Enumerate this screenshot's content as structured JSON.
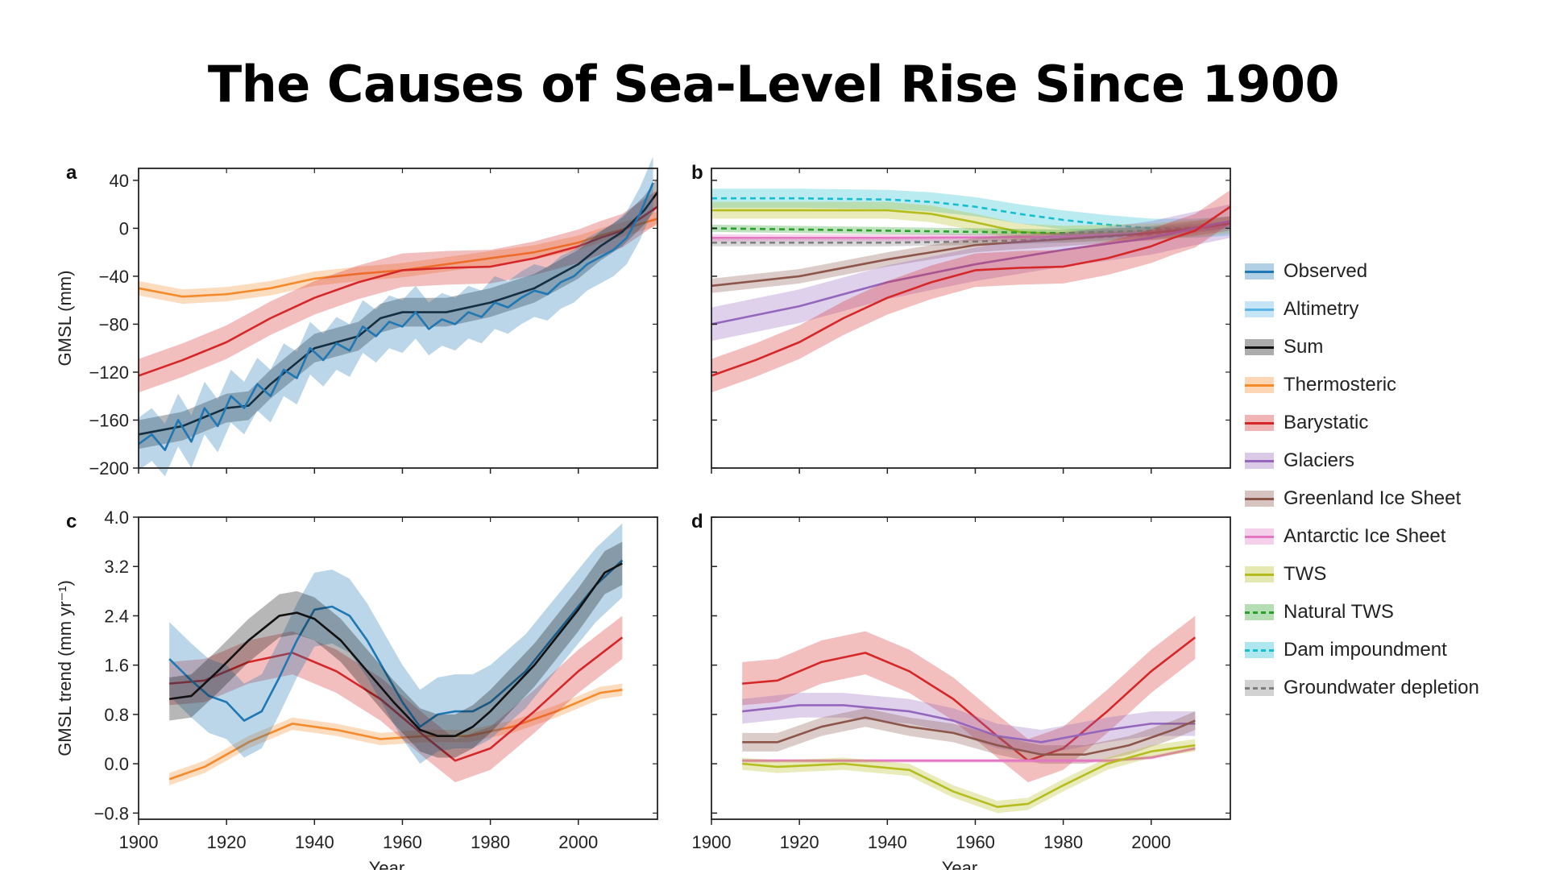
{
  "title": "The Causes of Sea-Level Rise Since 1900",
  "colors": {
    "observed": "#1f77b4",
    "altimetry": "#5ab4e6",
    "sum": "#111111",
    "thermosteric": "#f58a2a",
    "barystatic": "#d62728",
    "glaciers": "#9467bd",
    "greenland": "#8c564b",
    "antarctic": "#e377c2",
    "tws": "#b5bd1e",
    "natural_tws": "#2ca02c",
    "dam": "#17becf",
    "groundwater": "#7f7f7f"
  },
  "legend": [
    {
      "key": "observed",
      "label": "Observed",
      "style": "solid"
    },
    {
      "key": "altimetry",
      "label": "Altimetry",
      "style": "solid"
    },
    {
      "key": "sum",
      "label": "Sum",
      "style": "solid"
    },
    {
      "key": "thermosteric",
      "label": "Thermosteric",
      "style": "solid"
    },
    {
      "key": "barystatic",
      "label": "Barystatic",
      "style": "solid"
    },
    {
      "key": "glaciers",
      "label": "Glaciers",
      "style": "solid"
    },
    {
      "key": "greenland",
      "label": "Greenland Ice Sheet",
      "style": "solid"
    },
    {
      "key": "antarctic",
      "label": "Antarctic Ice Sheet",
      "style": "solid"
    },
    {
      "key": "tws",
      "label": "TWS",
      "style": "solid"
    },
    {
      "key": "natural_tws",
      "label": "Natural TWS",
      "style": "dashed"
    },
    {
      "key": "dam",
      "label": "Dam impoundment",
      "style": "dashed"
    },
    {
      "key": "groundwater",
      "label": "Groundwater depletion",
      "style": "dashed"
    }
  ],
  "chart_data": [
    {
      "panel": "a",
      "type": "line",
      "xlim": [
        1900,
        2018
      ],
      "ylim": [
        -200,
        50
      ],
      "xticks": [],
      "yticks": [
        "40",
        "0",
        "−40",
        "−80",
        "−120",
        "−160",
        "−200"
      ],
      "ytick_values": [
        40,
        0,
        -40,
        -80,
        -120,
        -160,
        -200
      ],
      "ylabel": "GMSL (mm)",
      "xlabel": "",
      "series": [
        {
          "key": "thermosteric",
          "style": "solid",
          "band": 6,
          "x": [
            1900,
            1910,
            1920,
            1930,
            1940,
            1950,
            1960,
            1970,
            1980,
            1990,
            2000,
            2005,
            2010,
            2018
          ],
          "y": [
            -50,
            -57,
            -55,
            -50,
            -42,
            -38,
            -35,
            -30,
            -25,
            -20,
            -12,
            -6,
            -1,
            8
          ]
        },
        {
          "key": "barystatic",
          "style": "solid",
          "band": 14,
          "x": [
            1900,
            1910,
            1920,
            1930,
            1940,
            1950,
            1960,
            1970,
            1980,
            1990,
            2000,
            2005,
            2010,
            2018
          ],
          "y": [
            -123,
            -110,
            -95,
            -75,
            -58,
            -45,
            -35,
            -33,
            -32,
            -25,
            -15,
            -8,
            -2,
            18
          ]
        },
        {
          "key": "sum",
          "style": "solid",
          "band": 12,
          "x": [
            1900,
            1910,
            1920,
            1925,
            1930,
            1940,
            1950,
            1955,
            1960,
            1970,
            1980,
            1990,
            2000,
            2005,
            2010,
            2015,
            2018
          ],
          "y": [
            -172,
            -165,
            -150,
            -148,
            -130,
            -100,
            -90,
            -75,
            -70,
            -70,
            -62,
            -50,
            -30,
            -15,
            -3,
            15,
            30
          ]
        },
        {
          "key": "observed",
          "style": "solid",
          "band": 22,
          "x": [
            1900,
            1903,
            1906,
            1909,
            1912,
            1915,
            1918,
            1921,
            1924,
            1927,
            1930,
            1933,
            1936,
            1939,
            1942,
            1945,
            1948,
            1951,
            1954,
            1957,
            1960,
            1963,
            1966,
            1969,
            1972,
            1975,
            1978,
            1981,
            1984,
            1987,
            1990,
            1993,
            1996,
            1999,
            2002,
            2005,
            2008,
            2011,
            2014,
            2017
          ],
          "y": [
            -180,
            -172,
            -185,
            -160,
            -178,
            -150,
            -165,
            -140,
            -150,
            -130,
            -140,
            -118,
            -125,
            -100,
            -110,
            -96,
            -102,
            -82,
            -90,
            -78,
            -82,
            -70,
            -84,
            -76,
            -80,
            -70,
            -74,
            -62,
            -66,
            -58,
            -52,
            -55,
            -45,
            -40,
            -30,
            -24,
            -18,
            -8,
            12,
            38
          ]
        }
      ]
    },
    {
      "panel": "b",
      "type": "line",
      "xlim": [
        1900,
        2018
      ],
      "ylim": [
        -200,
        50
      ],
      "xticks": [],
      "yticks": [],
      "ylabel": "",
      "xlabel": "",
      "series": [
        {
          "key": "dam",
          "style": "dashed",
          "band": 8,
          "x": [
            1900,
            1920,
            1940,
            1950,
            1960,
            1970,
            1980,
            1990,
            2000,
            2010,
            2018
          ],
          "y": [
            25,
            25,
            24,
            22,
            18,
            12,
            7,
            3,
            0,
            0,
            2
          ]
        },
        {
          "key": "tws",
          "style": "solid",
          "band": 7,
          "x": [
            1900,
            1920,
            1940,
            1950,
            1960,
            1970,
            1980,
            1990,
            2000,
            2010,
            2018
          ],
          "y": [
            15,
            15,
            15,
            12,
            5,
            -3,
            -5,
            -4,
            -3,
            0,
            3
          ]
        },
        {
          "key": "natural_tws",
          "style": "dashed",
          "band": 3,
          "x": [
            1900,
            1920,
            1940,
            1960,
            1980,
            2000,
            2018
          ],
          "y": [
            0,
            -1,
            -2,
            -3,
            -4,
            -2,
            3
          ]
        },
        {
          "key": "groundwater",
          "style": "dashed",
          "band": 3,
          "x": [
            1900,
            1940,
            1960,
            1980,
            2000,
            2010,
            2018
          ],
          "y": [
            -12,
            -12,
            -11,
            -9,
            -5,
            -1,
            3
          ]
        },
        {
          "key": "antarctic",
          "style": "solid",
          "band": 3,
          "x": [
            1900,
            1940,
            1980,
            2000,
            2018
          ],
          "y": [
            -8,
            -8,
            -7,
            -4,
            3
          ]
        },
        {
          "key": "greenland",
          "style": "solid",
          "band": 6,
          "x": [
            1900,
            1920,
            1940,
            1960,
            1980,
            2000,
            2010,
            2018
          ],
          "y": [
            -48,
            -40,
            -26,
            -14,
            -9,
            -4,
            0,
            4
          ]
        },
        {
          "key": "glaciers",
          "style": "solid",
          "band": 14,
          "x": [
            1900,
            1920,
            1940,
            1960,
            1980,
            2000,
            2010,
            2018
          ],
          "y": [
            -80,
            -65,
            -45,
            -30,
            -18,
            -8,
            0,
            6
          ]
        },
        {
          "key": "barystatic",
          "style": "solid",
          "band": 14,
          "x": [
            1900,
            1910,
            1920,
            1930,
            1940,
            1950,
            1960,
            1970,
            1980,
            1990,
            2000,
            2005,
            2010,
            2018
          ],
          "y": [
            -123,
            -110,
            -95,
            -75,
            -58,
            -45,
            -35,
            -33,
            -32,
            -25,
            -15,
            -8,
            -2,
            18
          ]
        }
      ]
    },
    {
      "panel": "c",
      "type": "line",
      "xlim": [
        1900,
        2018
      ],
      "ylim": [
        -0.9,
        4.0
      ],
      "xticks": [
        "1900",
        "1920",
        "1940",
        "1960",
        "1980",
        "2000"
      ],
      "xtick_values": [
        1900,
        1920,
        1940,
        1960,
        1980,
        2000
      ],
      "yticks": [
        "4.0",
        "3.2",
        "2.4",
        "1.6",
        "0.8",
        "0.0",
        "−0.8"
      ],
      "ytick_values": [
        4.0,
        3.2,
        2.4,
        1.6,
        0.8,
        0.0,
        -0.8
      ],
      "ylabel": "GMSL trend (mm yr⁻¹)",
      "xlabel": "Year",
      "series": [
        {
          "key": "thermosteric",
          "style": "solid",
          "band": 0.1,
          "x": [
            1907,
            1915,
            1925,
            1935,
            1945,
            1955,
            1965,
            1975,
            1985,
            1995,
            2005,
            2010
          ],
          "y": [
            -0.25,
            -0.05,
            0.35,
            0.65,
            0.55,
            0.4,
            0.45,
            0.45,
            0.6,
            0.85,
            1.15,
            1.2
          ]
        },
        {
          "key": "barystatic",
          "style": "solid",
          "band": 0.35,
          "x": [
            1907,
            1915,
            1925,
            1935,
            1945,
            1955,
            1965,
            1972,
            1980,
            1990,
            2000,
            2010
          ],
          "y": [
            1.3,
            1.35,
            1.65,
            1.8,
            1.5,
            1.05,
            0.45,
            0.05,
            0.25,
            0.85,
            1.5,
            2.05
          ]
        },
        {
          "key": "observed",
          "style": "solid",
          "band": 0.6,
          "x": [
            1907,
            1912,
            1916,
            1920,
            1924,
            1928,
            1932,
            1936,
            1940,
            1944,
            1948,
            1952,
            1956,
            1960,
            1964,
            1968,
            1972,
            1976,
            1980,
            1988,
            1996,
            2004,
            2010
          ],
          "y": [
            1.7,
            1.35,
            1.1,
            1.0,
            0.7,
            0.85,
            1.4,
            2.0,
            2.5,
            2.55,
            2.4,
            2.0,
            1.5,
            1.0,
            0.6,
            0.8,
            0.85,
            0.85,
            1.0,
            1.5,
            2.2,
            2.9,
            3.3
          ]
        },
        {
          "key": "sum",
          "style": "solid",
          "band": 0.35,
          "x": [
            1907,
            1912,
            1918,
            1925,
            1932,
            1936,
            1940,
            1946,
            1952,
            1958,
            1964,
            1968,
            1972,
            1976,
            1980,
            1990,
            2000,
            2006,
            2010
          ],
          "y": [
            1.05,
            1.1,
            1.5,
            2.0,
            2.4,
            2.45,
            2.35,
            2.0,
            1.5,
            1.0,
            0.55,
            0.45,
            0.45,
            0.6,
            0.85,
            1.6,
            2.5,
            3.1,
            3.25
          ]
        }
      ]
    },
    {
      "panel": "d",
      "type": "line",
      "xlim": [
        1900,
        2018
      ],
      "ylim": [
        -0.9,
        4.0
      ],
      "xticks": [
        "1900",
        "1920",
        "1940",
        "1960",
        "1980",
        "2000"
      ],
      "xtick_values": [
        1900,
        1920,
        1940,
        1960,
        1980,
        2000
      ],
      "yticks": [],
      "ylabel": "",
      "xlabel": "Year",
      "series": [
        {
          "key": "barystatic",
          "style": "solid",
          "band": 0.35,
          "x": [
            1907,
            1915,
            1925,
            1935,
            1945,
            1955,
            1965,
            1972,
            1980,
            1990,
            2000,
            2010
          ],
          "y": [
            1.3,
            1.35,
            1.65,
            1.8,
            1.5,
            1.05,
            0.45,
            0.05,
            0.25,
            0.85,
            1.5,
            2.05
          ]
        },
        {
          "key": "glaciers",
          "style": "solid",
          "band": 0.2,
          "x": [
            1907,
            1920,
            1930,
            1945,
            1955,
            1965,
            1975,
            1990,
            2000,
            2010
          ],
          "y": [
            0.85,
            0.95,
            0.95,
            0.85,
            0.7,
            0.45,
            0.35,
            0.55,
            0.65,
            0.65
          ]
        },
        {
          "key": "greenland",
          "style": "solid",
          "band": 0.15,
          "x": [
            1907,
            1915,
            1925,
            1935,
            1945,
            1955,
            1965,
            1975,
            1985,
            1995,
            2005,
            2010
          ],
          "y": [
            0.35,
            0.35,
            0.6,
            0.75,
            0.6,
            0.5,
            0.3,
            0.15,
            0.15,
            0.3,
            0.55,
            0.7
          ]
        },
        {
          "key": "antarctic",
          "style": "solid",
          "band": 0.03,
          "x": [
            1907,
            1950,
            1990,
            2000,
            2010
          ],
          "y": [
            0.05,
            0.05,
            0.05,
            0.1,
            0.25
          ]
        },
        {
          "key": "tws",
          "style": "solid",
          "band": 0.1,
          "x": [
            1907,
            1915,
            1930,
            1945,
            1955,
            1965,
            1972,
            1980,
            1990,
            2000,
            2010
          ],
          "y": [
            0.0,
            -0.05,
            0.0,
            -0.1,
            -0.45,
            -0.7,
            -0.65,
            -0.35,
            0.0,
            0.2,
            0.3
          ]
        }
      ]
    }
  ],
  "panel_labels": [
    "a",
    "b",
    "c",
    "d"
  ]
}
